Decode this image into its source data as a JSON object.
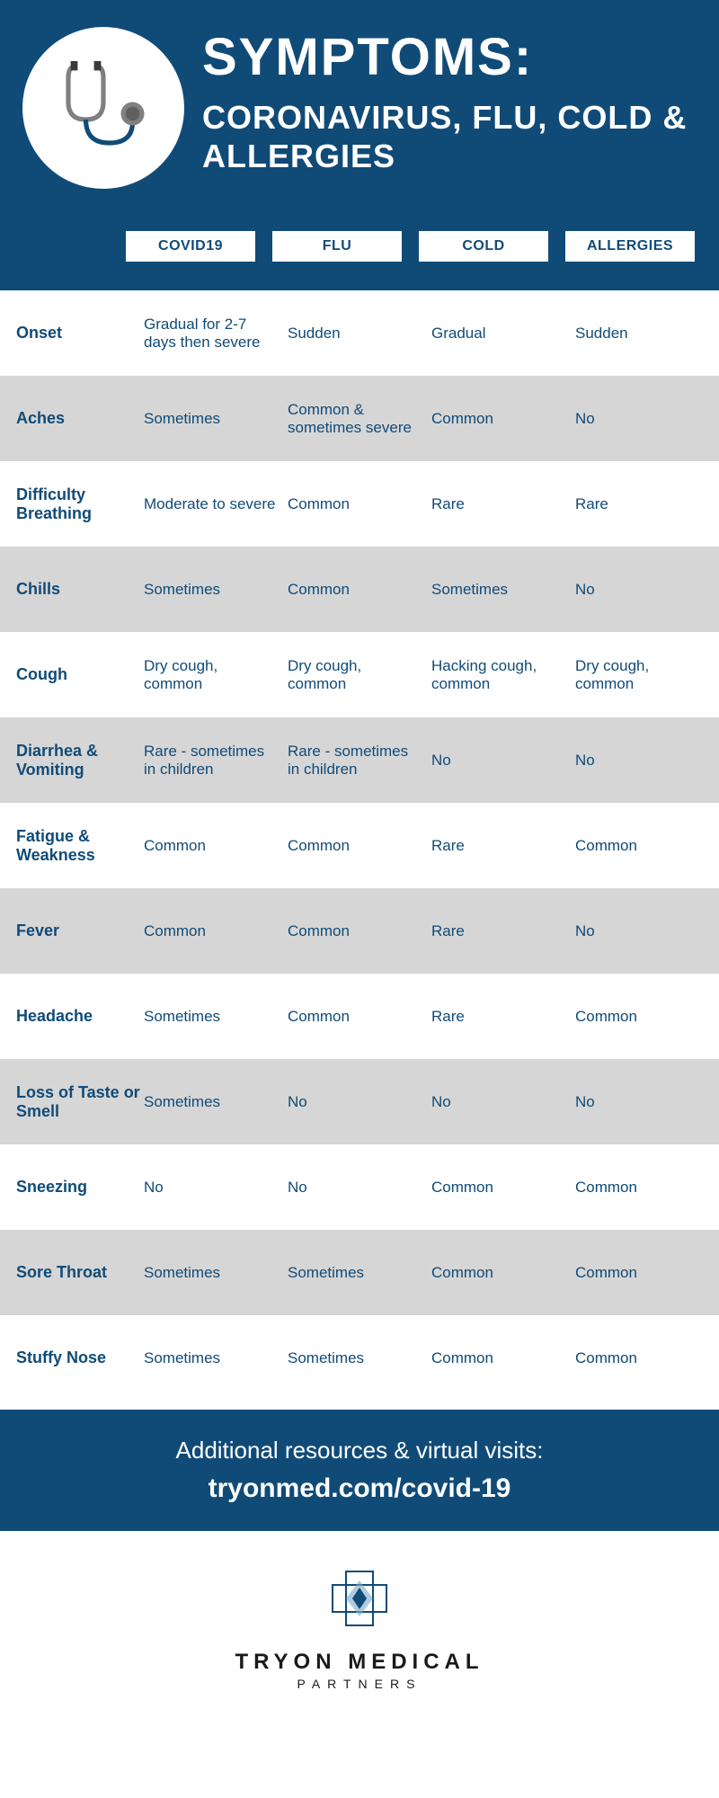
{
  "header": {
    "title": "SYMPTOMS:",
    "subtitle": "CORONAVIRUS, FLU, COLD & ALLERGIES",
    "background_color": "#104b78",
    "text_color": "#ffffff",
    "icon": "stethoscope"
  },
  "columns": [
    "COVID19",
    "FLU",
    "COLD",
    "ALLERGIES"
  ],
  "rows": [
    {
      "label": "Onset",
      "alt": false,
      "values": [
        "Gradual for 2-7 days then severe",
        "Sudden",
        "Gradual",
        "Sudden"
      ]
    },
    {
      "label": "Aches",
      "alt": true,
      "values": [
        "Sometimes",
        "Common & sometimes severe",
        "Common",
        "No"
      ]
    },
    {
      "label": "Difficulty Breathing",
      "alt": false,
      "values": [
        "Moderate to severe",
        "Common",
        "Rare",
        "Rare"
      ]
    },
    {
      "label": "Chills",
      "alt": true,
      "values": [
        "Sometimes",
        "Common",
        "Sometimes",
        "No"
      ]
    },
    {
      "label": "Cough",
      "alt": false,
      "values": [
        "Dry cough, common",
        "Dry cough, common",
        "Hacking cough, common",
        "Dry cough, common"
      ]
    },
    {
      "label": "Diarrhea & Vomiting",
      "alt": true,
      "values": [
        "Rare - sometimes in children",
        "Rare - sometimes in children",
        "No",
        "No"
      ]
    },
    {
      "label": "Fatigue & Weakness",
      "alt": false,
      "values": [
        "Common",
        "Common",
        "Rare",
        "Common"
      ]
    },
    {
      "label": "Fever",
      "alt": true,
      "values": [
        "Common",
        "Common",
        "Rare",
        "No"
      ]
    },
    {
      "label": "Headache",
      "alt": false,
      "values": [
        "Sometimes",
        "Common",
        "Rare",
        "Common"
      ]
    },
    {
      "label": "Loss of Taste or Smell",
      "alt": true,
      "values": [
        "Sometimes",
        "No",
        "No",
        "No"
      ]
    },
    {
      "label": "Sneezing",
      "alt": false,
      "values": [
        "No",
        "No",
        "Common",
        "Common"
      ]
    },
    {
      "label": "Sore Throat",
      "alt": true,
      "values": [
        "Sometimes",
        "Sometimes",
        "Common",
        "Common"
      ]
    },
    {
      "label": "Stuffy Nose",
      "alt": false,
      "values": [
        "Sometimes",
        "Sometimes",
        "Common",
        "Common"
      ]
    }
  ],
  "footer": {
    "line1": "Additional resources & virtual visits:",
    "line2": "tryonmed.com/covid-19"
  },
  "logo": {
    "name": "TRYON MEDICAL",
    "sub": "PARTNERS"
  },
  "colors": {
    "primary": "#104b78",
    "alt_row": "#d6d6d6",
    "white": "#ffffff"
  }
}
